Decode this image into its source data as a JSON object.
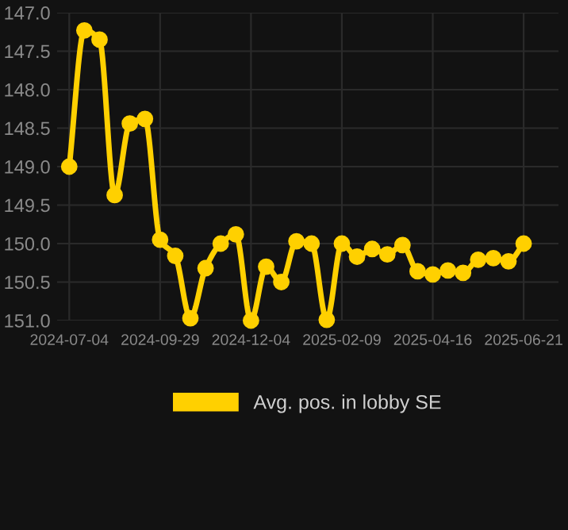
{
  "chart_data": {
    "type": "line",
    "categories": [
      "2024-07-04",
      null,
      null,
      null,
      null,
      null,
      "2024-09-29",
      null,
      null,
      null,
      null,
      null,
      "2024-12-04",
      null,
      null,
      null,
      null,
      null,
      "2025-02-09",
      null,
      null,
      null,
      null,
      null,
      "2025-04-16",
      null,
      null,
      null,
      null,
      null,
      "2025-06-21"
    ],
    "series": [
      {
        "name": "Avg. pos. in lobby SE",
        "color": "#ffd000",
        "values": [
          149.0,
          147.23,
          147.35,
          149.37,
          148.44,
          148.38,
          149.95,
          150.16,
          150.97,
          150.32,
          150.0,
          149.88,
          151.0,
          150.3,
          150.5,
          149.97,
          150.0,
          150.99,
          150.0,
          150.17,
          150.07,
          150.14,
          150.02,
          150.36,
          150.4,
          150.35,
          150.38,
          150.21,
          150.19,
          150.23,
          150.0
        ]
      }
    ],
    "ylim": [
      151.0,
      147.0
    ],
    "yticks": [
      {
        "value": 147.0,
        "label": "147.0"
      },
      {
        "value": 147.5,
        "label": "147.5"
      },
      {
        "value": 148.0,
        "label": "148.0"
      },
      {
        "value": 148.5,
        "label": "148.5"
      },
      {
        "value": 149.0,
        "label": "149.0"
      },
      {
        "value": 149.5,
        "label": "149.5"
      },
      {
        "value": 150.0,
        "label": "150.0"
      },
      {
        "value": 150.5,
        "label": "150.5"
      },
      {
        "value": 151.0,
        "label": "151.0"
      }
    ],
    "grid": true,
    "legend": "bottom",
    "marker": "circle",
    "line_style": "solid"
  }
}
